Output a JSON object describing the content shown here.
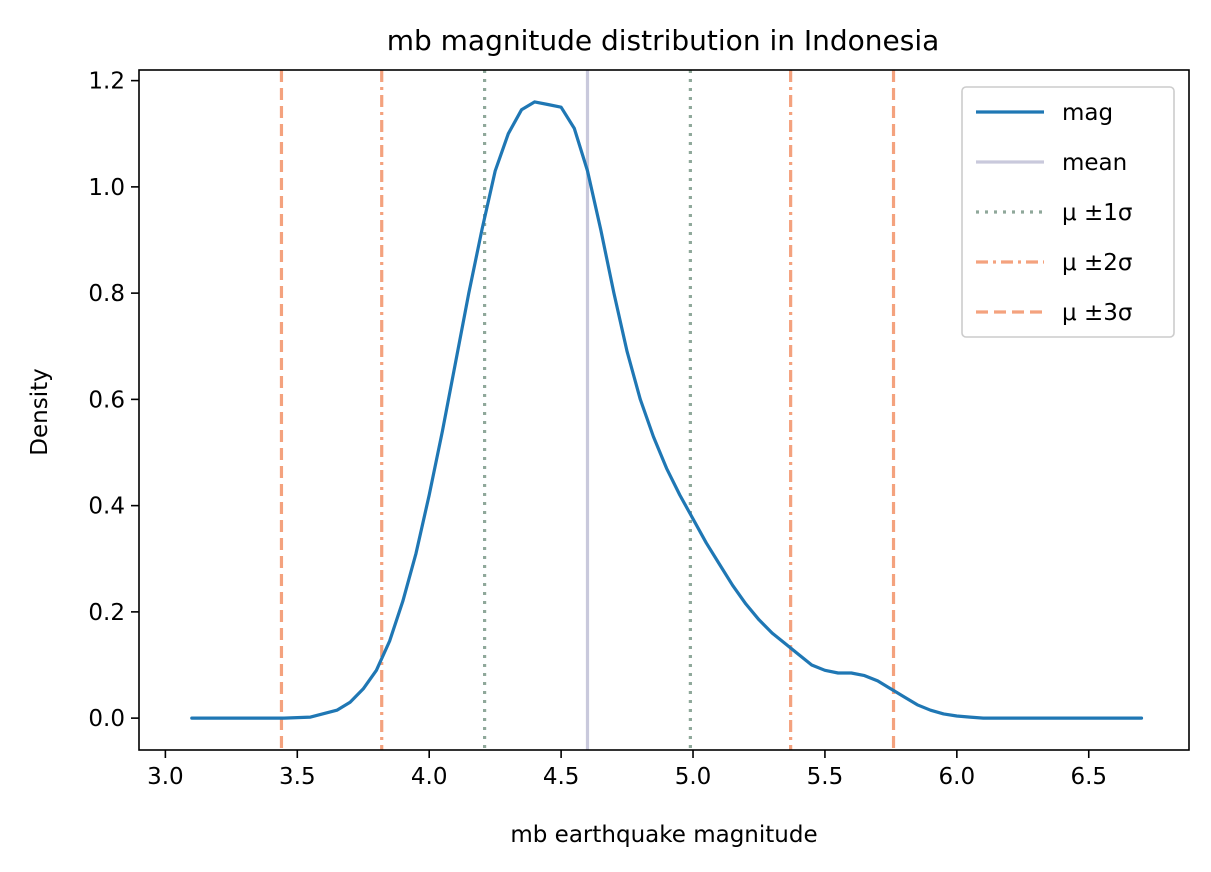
{
  "chart_data": {
    "type": "line",
    "title": "mb magnitude distribution in Indonesia",
    "xlabel": "mb earthquake magnitude",
    "ylabel": "Density",
    "xlim": [
      2.9,
      6.88
    ],
    "ylim": [
      -0.06,
      1.22
    ],
    "xticks": [
      3.0,
      3.5,
      4.0,
      4.5,
      5.0,
      5.5,
      6.0,
      6.5
    ],
    "xtick_labels": [
      "3.0",
      "3.5",
      "4.0",
      "4.5",
      "5.0",
      "5.5",
      "6.0",
      "6.5"
    ],
    "yticks": [
      0.0,
      0.2,
      0.4,
      0.6,
      0.8,
      1.0,
      1.2
    ],
    "ytick_labels": [
      "0.0",
      "0.2",
      "0.4",
      "0.6",
      "0.8",
      "1.0",
      "1.2"
    ],
    "grid": false,
    "legend_position": "top-right",
    "series": [
      {
        "name": "mag",
        "color": "#1f77b4",
        "x": [
          3.1,
          3.3,
          3.45,
          3.55,
          3.65,
          3.7,
          3.75,
          3.8,
          3.85,
          3.9,
          3.95,
          4.0,
          4.05,
          4.1,
          4.15,
          4.2,
          4.25,
          4.3,
          4.35,
          4.4,
          4.45,
          4.5,
          4.55,
          4.6,
          4.65,
          4.7,
          4.75,
          4.8,
          4.85,
          4.9,
          4.95,
          5.0,
          5.05,
          5.1,
          5.15,
          5.2,
          5.25,
          5.3,
          5.35,
          5.4,
          5.45,
          5.5,
          5.55,
          5.6,
          5.65,
          5.7,
          5.75,
          5.8,
          5.85,
          5.9,
          5.95,
          6.0,
          6.05,
          6.1,
          6.2,
          6.4,
          6.7
        ],
        "values": [
          0.0,
          0.0,
          0.0,
          0.002,
          0.015,
          0.03,
          0.055,
          0.09,
          0.145,
          0.22,
          0.31,
          0.42,
          0.54,
          0.67,
          0.8,
          0.92,
          1.03,
          1.1,
          1.145,
          1.16,
          1.155,
          1.15,
          1.11,
          1.03,
          0.92,
          0.8,
          0.69,
          0.6,
          0.53,
          0.47,
          0.42,
          0.375,
          0.33,
          0.29,
          0.25,
          0.215,
          0.185,
          0.16,
          0.14,
          0.12,
          0.1,
          0.09,
          0.085,
          0.085,
          0.08,
          0.07,
          0.055,
          0.04,
          0.025,
          0.015,
          0.008,
          0.004,
          0.002,
          0.0,
          0.0,
          0.0,
          0.0
        ]
      }
    ],
    "reference_lines": [
      {
        "name": "mean",
        "legend": "mean",
        "x": 4.6,
        "style": "solid",
        "color": "#c9c9dc"
      },
      {
        "name": "mu-minus-1sigma",
        "legend": "μ ±1σ",
        "x": 4.21,
        "style": "dotted",
        "color": "#8fa89a"
      },
      {
        "name": "mu-plus-1sigma",
        "legend": "",
        "x": 4.99,
        "style": "dotted",
        "color": "#8fa89a"
      },
      {
        "name": "mu-minus-2sigma",
        "legend": "μ ±2σ",
        "x": 3.82,
        "style": "dashdot",
        "color": "#f4a27e"
      },
      {
        "name": "mu-plus-2sigma",
        "legend": "",
        "x": 5.37,
        "style": "dashdot",
        "color": "#f4a27e"
      },
      {
        "name": "mu-minus-3sigma",
        "legend": "μ ±3σ",
        "x": 3.44,
        "style": "dashed",
        "color": "#f4a27e"
      },
      {
        "name": "mu-plus-3sigma",
        "legend": "",
        "x": 5.76,
        "style": "dashed",
        "color": "#f4a27e"
      }
    ],
    "legend": [
      {
        "label": "mag",
        "style": "solid",
        "color": "#1f77b4"
      },
      {
        "label": "mean",
        "style": "solid",
        "color": "#c9c9dc"
      },
      {
        "label": "μ ±1σ",
        "style": "dotted",
        "color": "#8fa89a"
      },
      {
        "label": "μ ±2σ",
        "style": "dashdot",
        "color": "#f4a27e"
      },
      {
        "label": "μ ±3σ",
        "style": "dashed",
        "color": "#f4a27e"
      }
    ]
  }
}
